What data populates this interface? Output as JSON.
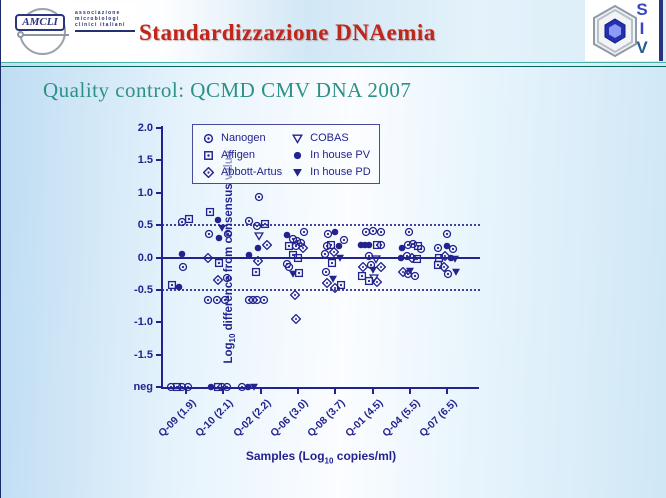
{
  "header": {
    "title": "Standardizzazione DNAemia",
    "amcli": {
      "acronym": "AMCLI",
      "lines": [
        "associazione",
        "microbiologi",
        "clinici italiani"
      ]
    },
    "siv": {
      "letters": [
        "S",
        "I",
        "V"
      ]
    }
  },
  "subtitle": "Quality control: QCMD CMV DNA 2007",
  "colors": {
    "navy": "#23238f",
    "title_red": "#c0261c",
    "teal_divider": "#0d8a82",
    "subtitle_teal": "#2e9187",
    "plot_bg": "transparent"
  },
  "chart_data": {
    "type": "scatter",
    "title": "",
    "ylabel": {
      "pre": "Log",
      "sub": "10",
      "post": " difference from consensus value"
    },
    "xlabel": {
      "pre": "Samples (Log",
      "sub": "10",
      "post": " copies/ml)"
    },
    "yticks": [
      {
        "label": "2.0",
        "value": 2.0
      },
      {
        "label": "1.5",
        "value": 1.5
      },
      {
        "label": "1.0",
        "value": 1.0
      },
      {
        "label": "0.5",
        "value": 0.5
      },
      {
        "label": "0.0",
        "value": 0.0
      },
      {
        "label": "-0.5",
        "value": -0.5
      },
      {
        "label": "-1.0",
        "value": -1.0
      },
      {
        "label": "-1.5",
        "value": -1.5
      },
      {
        "label": "neg",
        "value": -2.0
      }
    ],
    "ylim": [
      2.0,
      -2.0
    ],
    "ref_lines": {
      "zero": 0.0,
      "dotted": [
        0.5,
        -0.5
      ]
    },
    "categories": [
      "Q-09 (1.9)",
      "Q-10 (2.1)",
      "Q-02 (2.2)",
      "Q-06 (3.0)",
      "Q-08 (3.7)",
      "Q-01 (4.5)",
      "Q-04 (5.5)",
      "Q-07 (6.5)"
    ],
    "series": [
      {
        "key": "nanogen",
        "label": "Nanogen",
        "marker": "open-circle-dot"
      },
      {
        "key": "affigen",
        "label": "Affigen",
        "marker": "open-square-dot"
      },
      {
        "key": "abbott",
        "label": "Abbott-Artus",
        "marker": "open-diamond-dot"
      },
      {
        "key": "cobas",
        "label": "COBAS",
        "marker": "open-triangle-down"
      },
      {
        "key": "pv",
        "label": "In house PV",
        "marker": "filled-circle"
      },
      {
        "key": "pd",
        "label": "In house PD",
        "marker": "filled-triangle-down"
      }
    ],
    "legend_columns": [
      [
        "nanogen",
        "affigen",
        "abbott"
      ],
      [
        "cobas",
        "pv",
        "pd"
      ]
    ],
    "neg_meaning": "negative result (below detection)",
    "points": [
      [
        0,
        -4,
        0.55,
        "nanogen"
      ],
      [
        0,
        3,
        0.6,
        "affigen"
      ],
      [
        0,
        -4,
        0.05,
        "pv"
      ],
      [
        0,
        -3,
        -0.15,
        "nanogen"
      ],
      [
        0,
        -14,
        -0.42,
        "affigen"
      ],
      [
        0,
        -7,
        -0.45,
        "pv"
      ],
      [
        0,
        -15,
        "neg",
        "nanogen"
      ],
      [
        0,
        -9,
        "neg",
        "affigen"
      ],
      [
        0,
        -4,
        "neg",
        "nanogen"
      ],
      [
        0,
        2,
        "neg",
        "nanogen"
      ],
      [
        1,
        -13,
        0.7,
        "affigen"
      ],
      [
        1,
        -5,
        0.58,
        "pv"
      ],
      [
        1,
        -1,
        0.45,
        "pd"
      ],
      [
        1,
        -14,
        0.37,
        "nanogen"
      ],
      [
        1,
        5,
        0.37,
        "nanogen"
      ],
      [
        1,
        -4,
        0.3,
        "pv"
      ],
      [
        1,
        -15,
        0.0,
        "abbott"
      ],
      [
        1,
        -4,
        -0.08,
        "affigen"
      ],
      [
        1,
        4,
        -0.32,
        "nanogen"
      ],
      [
        1,
        -5,
        -0.35,
        "abbott"
      ],
      [
        1,
        -15,
        -0.65,
        "nanogen"
      ],
      [
        1,
        -6,
        -0.65,
        "nanogen"
      ],
      [
        1,
        2,
        -0.65,
        "nanogen"
      ],
      [
        1,
        -12,
        "neg",
        "pv"
      ],
      [
        1,
        -5,
        "neg",
        "affigen"
      ],
      [
        1,
        -1,
        "neg",
        "nanogen"
      ],
      [
        1,
        4,
        "neg",
        "nanogen"
      ],
      [
        2,
        -2,
        0.93,
        "nanogen"
      ],
      [
        2,
        -12,
        0.57,
        "nanogen"
      ],
      [
        2,
        4,
        0.52,
        "affigen"
      ],
      [
        2,
        -4,
        0.49,
        "nanogen"
      ],
      [
        2,
        -2,
        0.33,
        "cobas"
      ],
      [
        2,
        6,
        0.2,
        "abbott"
      ],
      [
        2,
        -3,
        0.15,
        "pv"
      ],
      [
        2,
        -12,
        0.04,
        "pv"
      ],
      [
        2,
        -3,
        -0.06,
        "abbott"
      ],
      [
        2,
        -5,
        -0.23,
        "affigen"
      ],
      [
        2,
        -12,
        -0.65,
        "nanogen"
      ],
      [
        2,
        -8,
        -0.65,
        "nanogen"
      ],
      [
        2,
        -4,
        -0.65,
        "nanogen"
      ],
      [
        2,
        3,
        -0.65,
        "nanogen"
      ],
      [
        2,
        -19,
        "neg",
        "nanogen"
      ],
      [
        2,
        -13,
        "neg",
        "pv"
      ],
      [
        2,
        -7,
        "neg",
        "pd"
      ],
      [
        3,
        6,
        0.4,
        "nanogen"
      ],
      [
        3,
        -11,
        0.34,
        "pv"
      ],
      [
        3,
        -5,
        0.28,
        "nanogen"
      ],
      [
        3,
        -1,
        0.25,
        "nanogen"
      ],
      [
        3,
        3,
        0.22,
        "nanogen"
      ],
      [
        3,
        -9,
        0.17,
        "affigen"
      ],
      [
        3,
        -2,
        0.17,
        "nanogen"
      ],
      [
        3,
        5,
        0.15,
        "abbott"
      ],
      [
        3,
        -5,
        0.04,
        "affigen"
      ],
      [
        3,
        0,
        0.0,
        "affigen"
      ],
      [
        3,
        -11,
        -0.1,
        "nanogen"
      ],
      [
        3,
        -9,
        -0.15,
        "nanogen"
      ],
      [
        3,
        -5,
        -0.26,
        "pd"
      ],
      [
        3,
        1,
        -0.24,
        "affigen"
      ],
      [
        3,
        -3,
        -0.58,
        "abbott"
      ],
      [
        3,
        -2,
        -0.95,
        "abbott"
      ],
      [
        4,
        0,
        0.39,
        "pv"
      ],
      [
        4,
        -7,
        0.36,
        "nanogen"
      ],
      [
        4,
        9,
        0.27,
        "nanogen"
      ],
      [
        4,
        -4,
        0.2,
        "affigen"
      ],
      [
        4,
        4,
        0.17,
        "pv"
      ],
      [
        4,
        -8,
        0.17,
        "nanogen"
      ],
      [
        4,
        -1,
        0.09,
        "abbott"
      ],
      [
        4,
        -10,
        0.05,
        "nanogen"
      ],
      [
        4,
        5,
        0.0,
        "pd"
      ],
      [
        4,
        -3,
        -0.09,
        "affigen"
      ],
      [
        4,
        -9,
        -0.23,
        "nanogen"
      ],
      [
        4,
        -2,
        -0.33,
        "pd"
      ],
      [
        4,
        -8,
        -0.4,
        "abbott"
      ],
      [
        4,
        6,
        -0.42,
        "affigen"
      ],
      [
        4,
        0,
        -0.47,
        "abbott"
      ],
      [
        5,
        -7,
        0.4,
        "nanogen"
      ],
      [
        5,
        0,
        0.41,
        "nanogen"
      ],
      [
        5,
        8,
        0.4,
        "nanogen"
      ],
      [
        5,
        -12,
        0.19,
        "pv"
      ],
      [
        5,
        -8,
        0.19,
        "pv"
      ],
      [
        5,
        -4,
        0.19,
        "pv"
      ],
      [
        5,
        4,
        0.19,
        "affigen"
      ],
      [
        5,
        8,
        0.2,
        "nanogen"
      ],
      [
        5,
        -4,
        0.02,
        "nanogen"
      ],
      [
        5,
        3,
        -0.02,
        "cobas"
      ],
      [
        5,
        -10,
        -0.14,
        "abbott"
      ],
      [
        5,
        -2,
        -0.12,
        "nanogen"
      ],
      [
        5,
        8,
        -0.14,
        "abbott"
      ],
      [
        5,
        0,
        -0.19,
        "pd"
      ],
      [
        5,
        -11,
        -0.28,
        "affigen"
      ],
      [
        5,
        1,
        -0.31,
        "cobas"
      ],
      [
        5,
        -4,
        -0.37,
        "affigen"
      ],
      [
        5,
        4,
        -0.38,
        "abbott"
      ],
      [
        6,
        -1,
        0.4,
        "nanogen"
      ],
      [
        6,
        -8,
        0.15,
        "pv"
      ],
      [
        6,
        -2,
        0.19,
        "nanogen"
      ],
      [
        6,
        3,
        0.21,
        "nanogen"
      ],
      [
        6,
        8,
        0.17,
        "affigen"
      ],
      [
        6,
        11,
        0.13,
        "nanogen"
      ],
      [
        6,
        -9,
        0.0,
        "pv"
      ],
      [
        6,
        -3,
        0.03,
        "nanogen"
      ],
      [
        6,
        2,
        0.0,
        "abbott"
      ],
      [
        6,
        7,
        -0.02,
        "affigen"
      ],
      [
        6,
        -7,
        -0.23,
        "abbott"
      ],
      [
        6,
        0,
        -0.21,
        "pd"
      ],
      [
        6,
        -2,
        -0.26,
        "nanogen"
      ],
      [
        6,
        5,
        -0.28,
        "nanogen"
      ],
      [
        7,
        0,
        0.36,
        "nanogen"
      ],
      [
        7,
        -9,
        0.15,
        "nanogen"
      ],
      [
        7,
        0,
        0.17,
        "pv"
      ],
      [
        7,
        6,
        0.13,
        "nanogen"
      ],
      [
        7,
        -8,
        0.0,
        "affigen"
      ],
      [
        7,
        -2,
        0.03,
        "abbott"
      ],
      [
        7,
        4,
        0.0,
        "pv"
      ],
      [
        7,
        8,
        -0.02,
        "pd"
      ],
      [
        7,
        -9,
        -0.12,
        "affigen"
      ],
      [
        7,
        -3,
        -0.15,
        "abbott"
      ],
      [
        7,
        1,
        -0.26,
        "nanogen"
      ],
      [
        7,
        9,
        -0.23,
        "pd"
      ]
    ]
  }
}
